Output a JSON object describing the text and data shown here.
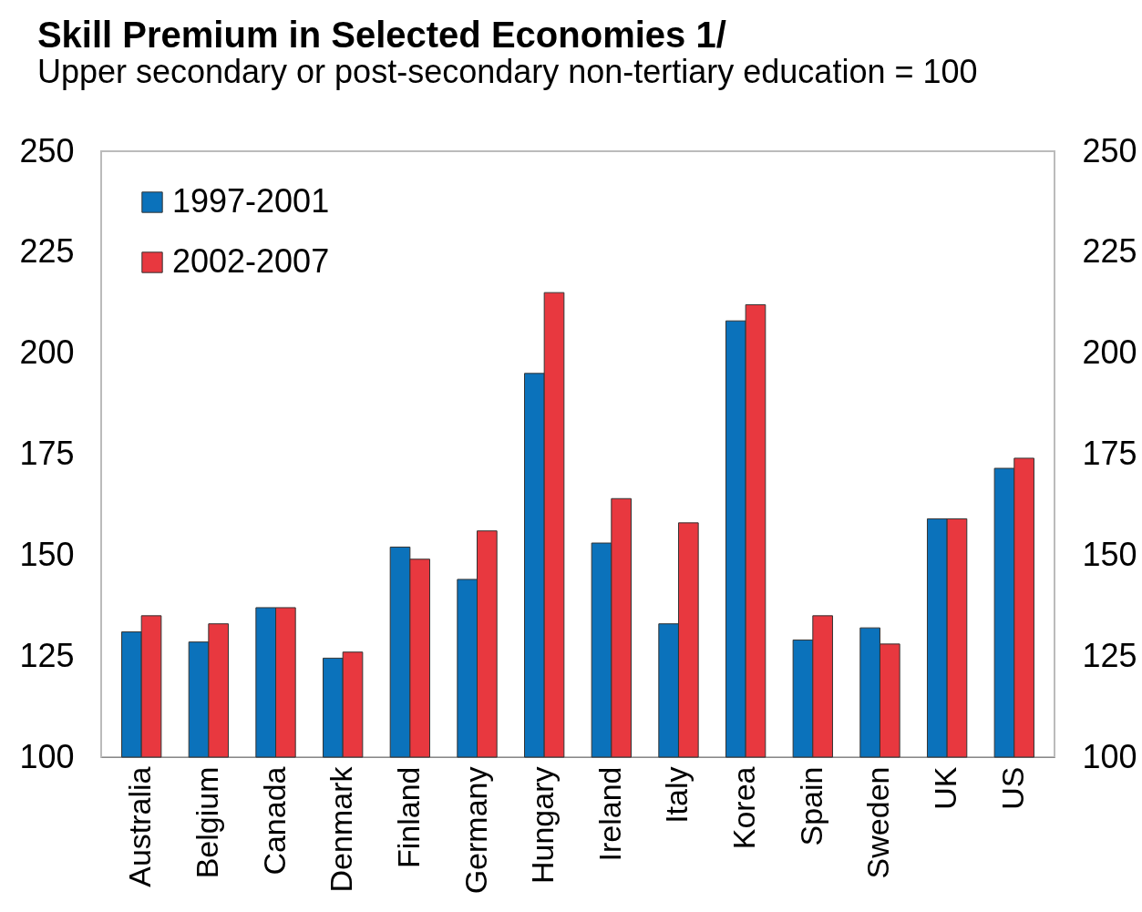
{
  "chart_data": {
    "type": "bar",
    "title": "Skill Premium in Selected Economies 1/",
    "subtitle": "Upper secondary or post-secondary non-tertiary education = 100",
    "categories": [
      "Australia",
      "Belgium",
      "Canada",
      "Denmark",
      "Finland",
      "Germany",
      "Hungary",
      "Ireland",
      "Italy",
      "Korea",
      "Spain",
      "Sweden",
      "UK",
      "US"
    ],
    "series": [
      {
        "name": "1997-2001",
        "color": "#0b72bb",
        "values": [
          131,
          128.5,
          137,
          124.5,
          152,
          144,
          195,
          153,
          133,
          208,
          129,
          132,
          159,
          171.5
        ]
      },
      {
        "name": "2002-2007",
        "color": "#e8383f",
        "values": [
          135,
          133,
          137,
          126,
          149,
          156,
          215,
          164,
          158,
          212,
          135,
          128,
          159,
          174
        ]
      }
    ],
    "ylim": [
      100,
      250
    ],
    "yticks": [
      100,
      125,
      150,
      175,
      200,
      225,
      250
    ],
    "y2lim": [
      100,
      250
    ],
    "y2ticks": [
      100,
      125,
      150,
      175,
      200,
      225,
      250
    ],
    "grid": false,
    "legend": "top left"
  }
}
